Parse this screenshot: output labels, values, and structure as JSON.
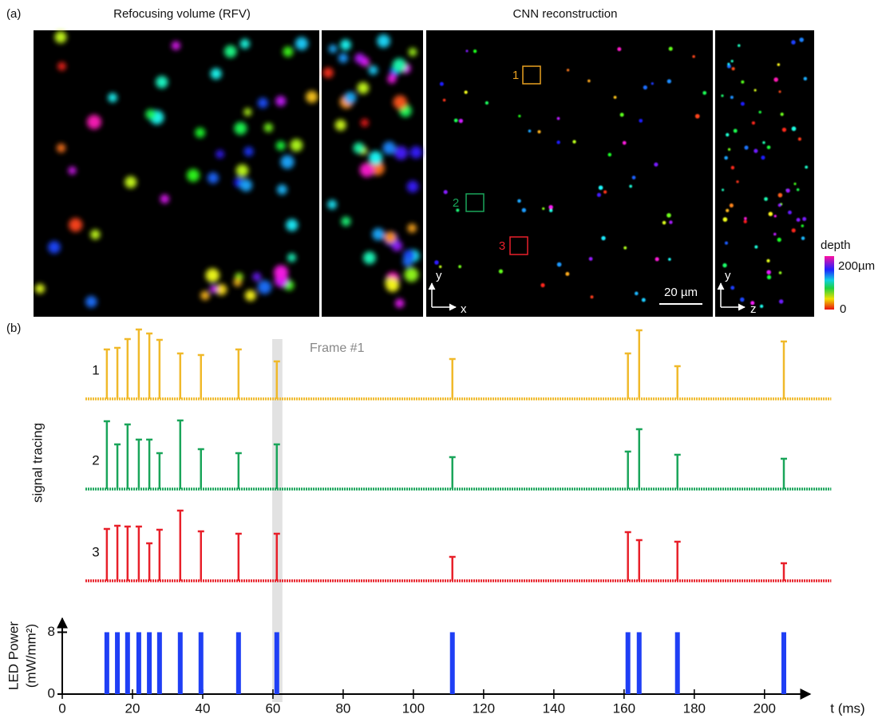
{
  "panel_a": {
    "label": "(a)",
    "rfv_title": "Refocusing volume (RFV)",
    "cnn_title": "CNN reconstruction",
    "roi_labels": [
      {
        "text": "1",
        "color": "#e8a020"
      },
      {
        "text": "2",
        "color": "#1aa55a"
      },
      {
        "text": "3",
        "color": "#e8202a"
      }
    ],
    "axis_y": "y",
    "axis_x": "x",
    "axis_z": "z",
    "scale_bar": "20 µm",
    "colorbar": {
      "title": "depth",
      "top": "200µm",
      "bottom": "0"
    }
  },
  "chart_data": [
    {
      "type": "spike",
      "label": "(b)",
      "annotation": "Frame #1",
      "ylabel": "signal tracing",
      "frame_window": [
        59.8,
        62.7
      ],
      "xlim": [
        6.6,
        219
      ],
      "ylim": [
        0,
        1
      ],
      "x": [
        12.7,
        15.7,
        18.6,
        21.8,
        24.8,
        27.7,
        33.6,
        39.5,
        50.2,
        61.1,
        111.1,
        161.1,
        164.3,
        175.2,
        205.5
      ],
      "series": [
        {
          "name": "1",
          "color": "#f0b92a",
          "values": [
            0.62,
            0.64,
            0.75,
            0.87,
            0.82,
            0.74,
            0.57,
            0.55,
            0.62,
            0.47,
            0.5,
            0.57,
            0.86,
            0.41,
            0.72
          ]
        },
        {
          "name": "2",
          "color": "#1aa55a",
          "values": [
            0.85,
            0.56,
            0.81,
            0.62,
            0.62,
            0.45,
            0.86,
            0.5,
            0.45,
            0.56,
            0.4,
            0.47,
            0.75,
            0.43,
            0.38
          ]
        },
        {
          "name": "3",
          "color": "#e8202a",
          "values": [
            0.65,
            0.69,
            0.68,
            0.68,
            0.47,
            0.64,
            0.88,
            0.62,
            0.59,
            0.59,
            0.3,
            0.61,
            0.51,
            0.49,
            0.22
          ]
        }
      ]
    },
    {
      "type": "bar",
      "ylabel": [
        "LED Power",
        "(mW/mm²)"
      ],
      "xlabel": "t (ms)",
      "color": "#1f3ff5",
      "xlim": [
        0,
        213
      ],
      "ylim": [
        0,
        9.8
      ],
      "yticks": [
        0,
        8
      ],
      "xticks": [
        0,
        20,
        40,
        60,
        80,
        100,
        120,
        140,
        160,
        180,
        200
      ],
      "x": [
        12.7,
        15.7,
        18.6,
        21.8,
        24.8,
        27.7,
        33.6,
        39.5,
        50.2,
        61.1,
        111.1,
        161.1,
        164.3,
        175.2,
        205.5
      ],
      "values": [
        8,
        8,
        8,
        8,
        8,
        8,
        8,
        8,
        8,
        8,
        8,
        8,
        8,
        8,
        8
      ]
    }
  ]
}
